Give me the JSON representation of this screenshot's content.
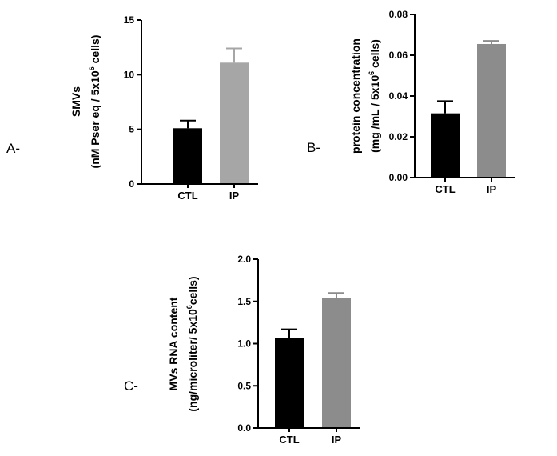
{
  "chart_data": [
    {
      "id": "A",
      "panel_label": "A-",
      "type": "bar",
      "categories": [
        "CTL",
        "IP"
      ],
      "values": [
        5.1,
        11.1
      ],
      "errors": [
        0.7,
        1.3
      ],
      "colors": [
        "#000000",
        "#a6a6a6"
      ],
      "ylim": [
        0,
        15
      ],
      "yticks": [
        0,
        5,
        10,
        15
      ],
      "ytick_labels": [
        "0",
        "5",
        "10",
        "15"
      ],
      "ylabel_line1": "SMVs",
      "ylabel_line2_pre": "(nM Pser eq / 5x10",
      "ylabel_sup": "6",
      "ylabel_line2_post": " cells)",
      "xlabel": "",
      "title": ""
    },
    {
      "id": "B",
      "panel_label": "B-",
      "type": "bar",
      "categories": [
        "CTL",
        "IP"
      ],
      "values": [
        0.0315,
        0.0655
      ],
      "errors": [
        0.006,
        0.0015
      ],
      "colors": [
        "#000000",
        "#8c8c8c"
      ],
      "ylim": [
        0,
        0.08
      ],
      "yticks": [
        0,
        0.02,
        0.04,
        0.06,
        0.08
      ],
      "ytick_labels": [
        "0.00",
        "0.02",
        "0.04",
        "0.06",
        "0.08"
      ],
      "ylabel_line1": "protein concentration",
      "ylabel_line2_pre": "(mg /mL / 5x10",
      "ylabel_sup": "6",
      "ylabel_line2_post": " cells)",
      "xlabel": "",
      "title": ""
    },
    {
      "id": "C",
      "panel_label": "C-",
      "type": "bar",
      "categories": [
        "CTL",
        "IP"
      ],
      "values": [
        1.07,
        1.54
      ],
      "errors": [
        0.1,
        0.06
      ],
      "colors": [
        "#000000",
        "#8c8c8c"
      ],
      "ylim": [
        0,
        2
      ],
      "yticks": [
        0,
        0.5,
        1,
        1.5,
        2
      ],
      "ytick_labels": [
        "0.0",
        "0.5",
        "1.0",
        "1.5",
        "2.0"
      ],
      "ylabel_line1": "MVs RNA content",
      "ylabel_line2_pre": "(ng/microliter/ 5x10",
      "ylabel_sup": "6",
      "ylabel_line2_post": "cells)",
      "xlabel": "",
      "title": ""
    }
  ]
}
